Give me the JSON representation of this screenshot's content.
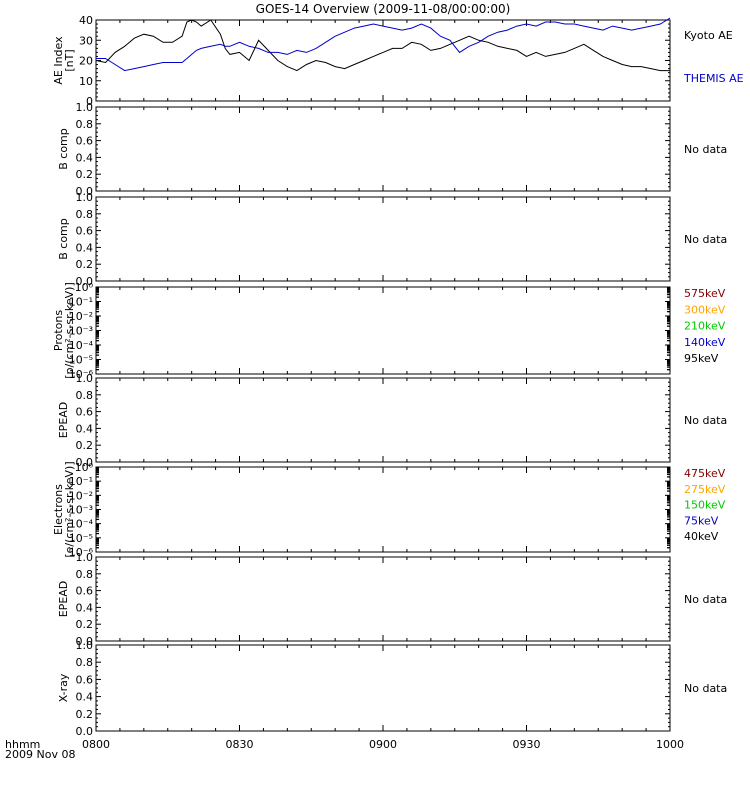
{
  "title": "GOES-14 Overview (2009-11-08/00:00:00)",
  "x_axis": {
    "label_line1": "hhmm",
    "label_line2": "2009 Nov 08",
    "ticks": [
      "0800",
      "0830",
      "0900",
      "0930",
      "1000"
    ]
  },
  "chart_data": [
    {
      "type": "line",
      "ylabel_line1": "AE Index",
      "ylabel_line2": "[nT]",
      "ylim": [
        0,
        40
      ],
      "yticks": [
        "0",
        "10",
        "20",
        "30",
        "40"
      ],
      "x": [
        0,
        2,
        4,
        6,
        8,
        10,
        12,
        14,
        16,
        18,
        19,
        20,
        21,
        22,
        24,
        26,
        27,
        28,
        30,
        32,
        34,
        36,
        38,
        40,
        42,
        44,
        46,
        48,
        50,
        52,
        54,
        56,
        58,
        60,
        62,
        64,
        66,
        68,
        70,
        72,
        74,
        76,
        78,
        80,
        82,
        84,
        86,
        88,
        90,
        92,
        94,
        96,
        98,
        100,
        102,
        104,
        106,
        108,
        110,
        112,
        114,
        116,
        118,
        120
      ],
      "series": [
        {
          "name": "Kyoto AE",
          "color": "#000000",
          "values": [
            20,
            19,
            24,
            27,
            31,
            33,
            32,
            29,
            29,
            32,
            39,
            40,
            39,
            37,
            40,
            33,
            26,
            23,
            24,
            20,
            30,
            25,
            20,
            17,
            15,
            18,
            20,
            19,
            17,
            16,
            18,
            20,
            22,
            24,
            26,
            26,
            29,
            28,
            25,
            26,
            28,
            30,
            32,
            30,
            29,
            27,
            26,
            25,
            22,
            24,
            22,
            23,
            24,
            26,
            28,
            25,
            22,
            20,
            18,
            17,
            17,
            16,
            15,
            15
          ]
        },
        {
          "name": "THEMIS AE",
          "color": "#0000cc",
          "values": [
            21,
            21,
            18,
            15,
            16,
            17,
            18,
            19,
            19,
            19,
            21,
            23,
            25,
            26,
            27,
            28,
            27,
            27,
            29,
            27,
            26,
            24,
            24,
            23,
            25,
            24,
            26,
            29,
            32,
            34,
            36,
            37,
            38,
            37,
            36,
            35,
            36,
            38,
            36,
            32,
            30,
            24,
            27,
            29,
            32,
            34,
            35,
            37,
            38,
            37,
            39,
            39,
            38,
            38,
            37,
            36,
            35,
            37,
            36,
            35,
            36,
            37,
            38,
            41
          ]
        }
      ]
    },
    {
      "type": "line",
      "ylabel": "B comp",
      "ylim": [
        0,
        1
      ],
      "yticks": [
        "0.0",
        "0.2",
        "0.4",
        "0.6",
        "0.8",
        "1.0"
      ],
      "annotation": "No data",
      "series": []
    },
    {
      "type": "line",
      "ylabel": "B comp",
      "ylim": [
        0,
        1
      ],
      "yticks": [
        "0.0",
        "0.2",
        "0.4",
        "0.6",
        "0.8",
        "1.0"
      ],
      "annotation": "No data",
      "series": []
    },
    {
      "type": "line",
      "ylabel_line1": "Protons",
      "ylabel_line2": "[p/(cm²-s-sr-keV)]",
      "yscale": "log",
      "ylim": [
        1e-06,
        1
      ],
      "yticks": [
        "10⁻⁶",
        "10⁻⁵",
        "10⁻⁴",
        "10⁻³",
        "10⁻²",
        "10⁻¹",
        "10⁰"
      ],
      "series": [
        {
          "name": "575keV",
          "color": "#800000",
          "values": []
        },
        {
          "name": "300keV",
          "color": "#ffa500",
          "values": []
        },
        {
          "name": "210keV",
          "color": "#00cc00",
          "values": []
        },
        {
          "name": "140keV",
          "color": "#0000cc",
          "values": []
        },
        {
          "name": "95keV",
          "color": "#000000",
          "values": []
        }
      ]
    },
    {
      "type": "line",
      "ylabel": "EPEAD",
      "ylim": [
        0,
        1
      ],
      "yticks": [
        "0.0",
        "0.2",
        "0.4",
        "0.6",
        "0.8",
        "1.0"
      ],
      "annotation": "No data",
      "series": []
    },
    {
      "type": "line",
      "ylabel_line1": "Electrons",
      "ylabel_line2": "[e/(cm²-s-sr-keV)]",
      "yscale": "log",
      "ylim": [
        1e-06,
        1
      ],
      "yticks": [
        "10⁻⁶",
        "10⁻⁵",
        "10⁻⁴",
        "10⁻³",
        "10⁻²",
        "10⁻¹",
        "10⁰"
      ],
      "series": [
        {
          "name": "475keV",
          "color": "#800000",
          "values": []
        },
        {
          "name": "275keV",
          "color": "#ffa500",
          "values": []
        },
        {
          "name": "150keV",
          "color": "#00cc00",
          "values": []
        },
        {
          "name": "75keV",
          "color": "#0000cc",
          "values": []
        },
        {
          "name": "40keV",
          "color": "#000000",
          "values": []
        }
      ]
    },
    {
      "type": "line",
      "ylabel": "EPEAD",
      "ylim": [
        0,
        1
      ],
      "yticks": [
        "0.0",
        "0.2",
        "0.4",
        "0.6",
        "0.8",
        "1.0"
      ],
      "annotation": "No data",
      "series": []
    },
    {
      "type": "line",
      "ylabel": "X-ray",
      "ylim": [
        0,
        1
      ],
      "yticks": [
        "0.0",
        "0.2",
        "0.4",
        "0.6",
        "0.8",
        "1.0"
      ],
      "annotation": "No data",
      "series": []
    }
  ]
}
